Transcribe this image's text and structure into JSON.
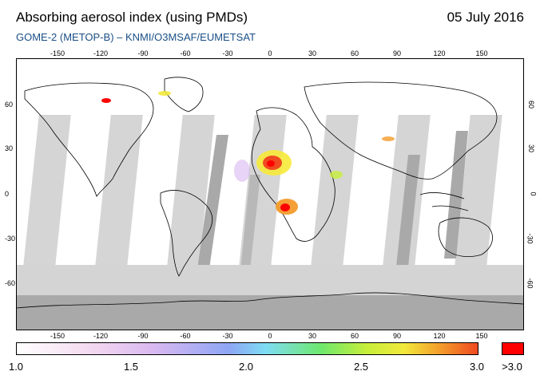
{
  "header": {
    "title": "Absorbing aerosol index (using PMDs)",
    "date": "05 July 2016",
    "subtitle": "GOME-2 (METOP-B)  –  KNMI/O3MSAF/EUMETSAT"
  },
  "map": {
    "longitude_ticks": [
      "-150",
      "-120",
      "-90",
      "-60",
      "-30",
      "0",
      "30",
      "60",
      "90",
      "120",
      "150"
    ],
    "latitude_ticks": [
      "60",
      "30",
      "0",
      "-30",
      "-60"
    ],
    "colors": {
      "ocean": "#ffffff",
      "no_data_swath": "#d0d0d0",
      "antarctic_shadow": "#a9a9a9",
      "coastline": "#000000",
      "max_aerosol": "#ff0000"
    }
  },
  "colorbar": {
    "labels": [
      "1.0",
      "1.5",
      "2.0",
      "2.5",
      "3.0"
    ],
    "max_label": ">3.0",
    "max_color": "#ff0000"
  }
}
